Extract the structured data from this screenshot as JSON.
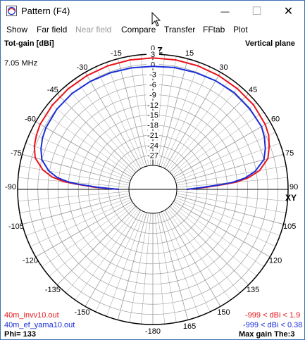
{
  "window": {
    "title": "Pattern   (F4)",
    "minimize_glyph": "—",
    "maximize_glyph": "☐",
    "close_glyph": "✕",
    "icon": "antenna-pattern-app-icon"
  },
  "menu": [
    {
      "label": "Show",
      "enabled": true
    },
    {
      "label": "Far field",
      "enabled": true
    },
    {
      "label": "Near field",
      "enabled": false
    },
    {
      "label": "Compare",
      "enabled": true
    },
    {
      "label": "Transfer",
      "enabled": true
    },
    {
      "label": "FFtab",
      "enabled": true
    },
    {
      "label": "Plot",
      "enabled": true
    }
  ],
  "plot": {
    "top_left": "Tot-gain [dBi]",
    "top_right": "Vertical plane",
    "frequency": "7.05 MHz",
    "z_label": "Z",
    "xy_label": "XY",
    "file1": "40m_invv10.out",
    "file2": "40m_ef_yama10.out",
    "range1": "-999 < dBi < 1.9",
    "range2": "-999 < dBi < 0.38",
    "phi": "Phi= 133",
    "max_gain": "Max gain The:3"
  },
  "colors": {
    "series1": "#e8141a",
    "series2": "#1a2fd8",
    "grid": "#9a9a9a",
    "frame": "#000000"
  },
  "chart_data": {
    "type": "polar",
    "angle_labels": [
      "0",
      "15",
      "30",
      "45",
      "60",
      "75",
      "90",
      "105",
      "120",
      "135",
      "150",
      "165",
      "-180",
      "-150",
      "-135",
      "-120",
      "-105",
      "-90",
      "-75",
      "-60",
      "-45",
      "-30",
      "-15"
    ],
    "radial_labels": [
      "3",
      "0",
      "-3",
      "-6",
      "-9",
      "-12",
      "-15",
      "-18",
      "-21",
      "-24",
      "-27"
    ],
    "radial_range_dbi": [
      -30,
      3
    ],
    "series": [
      {
        "name": "40m_invv10.out",
        "color": "#e8141a",
        "elev_deg": [
          0,
          2,
          4,
          5,
          7,
          10,
          15,
          20,
          25,
          30,
          40,
          50,
          60,
          70,
          80,
          90
        ],
        "right_dbi": [
          -27,
          -22,
          -16,
          -12.2,
          -8.5,
          -5,
          -1.8,
          -0.4,
          0.8,
          1.4,
          1.9,
          1.9,
          1.9,
          1.9,
          1.9,
          1.9
        ],
        "left_dbi": [
          -27,
          -20,
          -14,
          -10.5,
          -7,
          -4,
          -1,
          0.3,
          1.0,
          1.5,
          1.8,
          1.9,
          1.9,
          1.9,
          1.9,
          1.9
        ]
      },
      {
        "name": "40m_ef_yama10.out",
        "color": "#1a2fd8",
        "elev_deg": [
          0,
          2,
          4,
          5,
          7,
          10,
          15,
          20,
          25,
          30,
          40,
          50,
          60,
          70,
          80,
          90
        ],
        "right_dbi": [
          -27,
          -23,
          -17,
          -13.5,
          -9.6,
          -6.3,
          -3.0,
          -1.6,
          -0.6,
          0.1,
          0.3,
          0.38,
          0.1,
          -0.2,
          -0.4,
          -0.6
        ],
        "left_dbi": [
          -27,
          -21,
          -15,
          -12,
          -8.6,
          -5.8,
          -3.0,
          -1.8,
          -1.0,
          -0.5,
          0.0,
          0.1,
          -0.1,
          -0.3,
          -0.5,
          -0.6
        ]
      }
    ]
  }
}
